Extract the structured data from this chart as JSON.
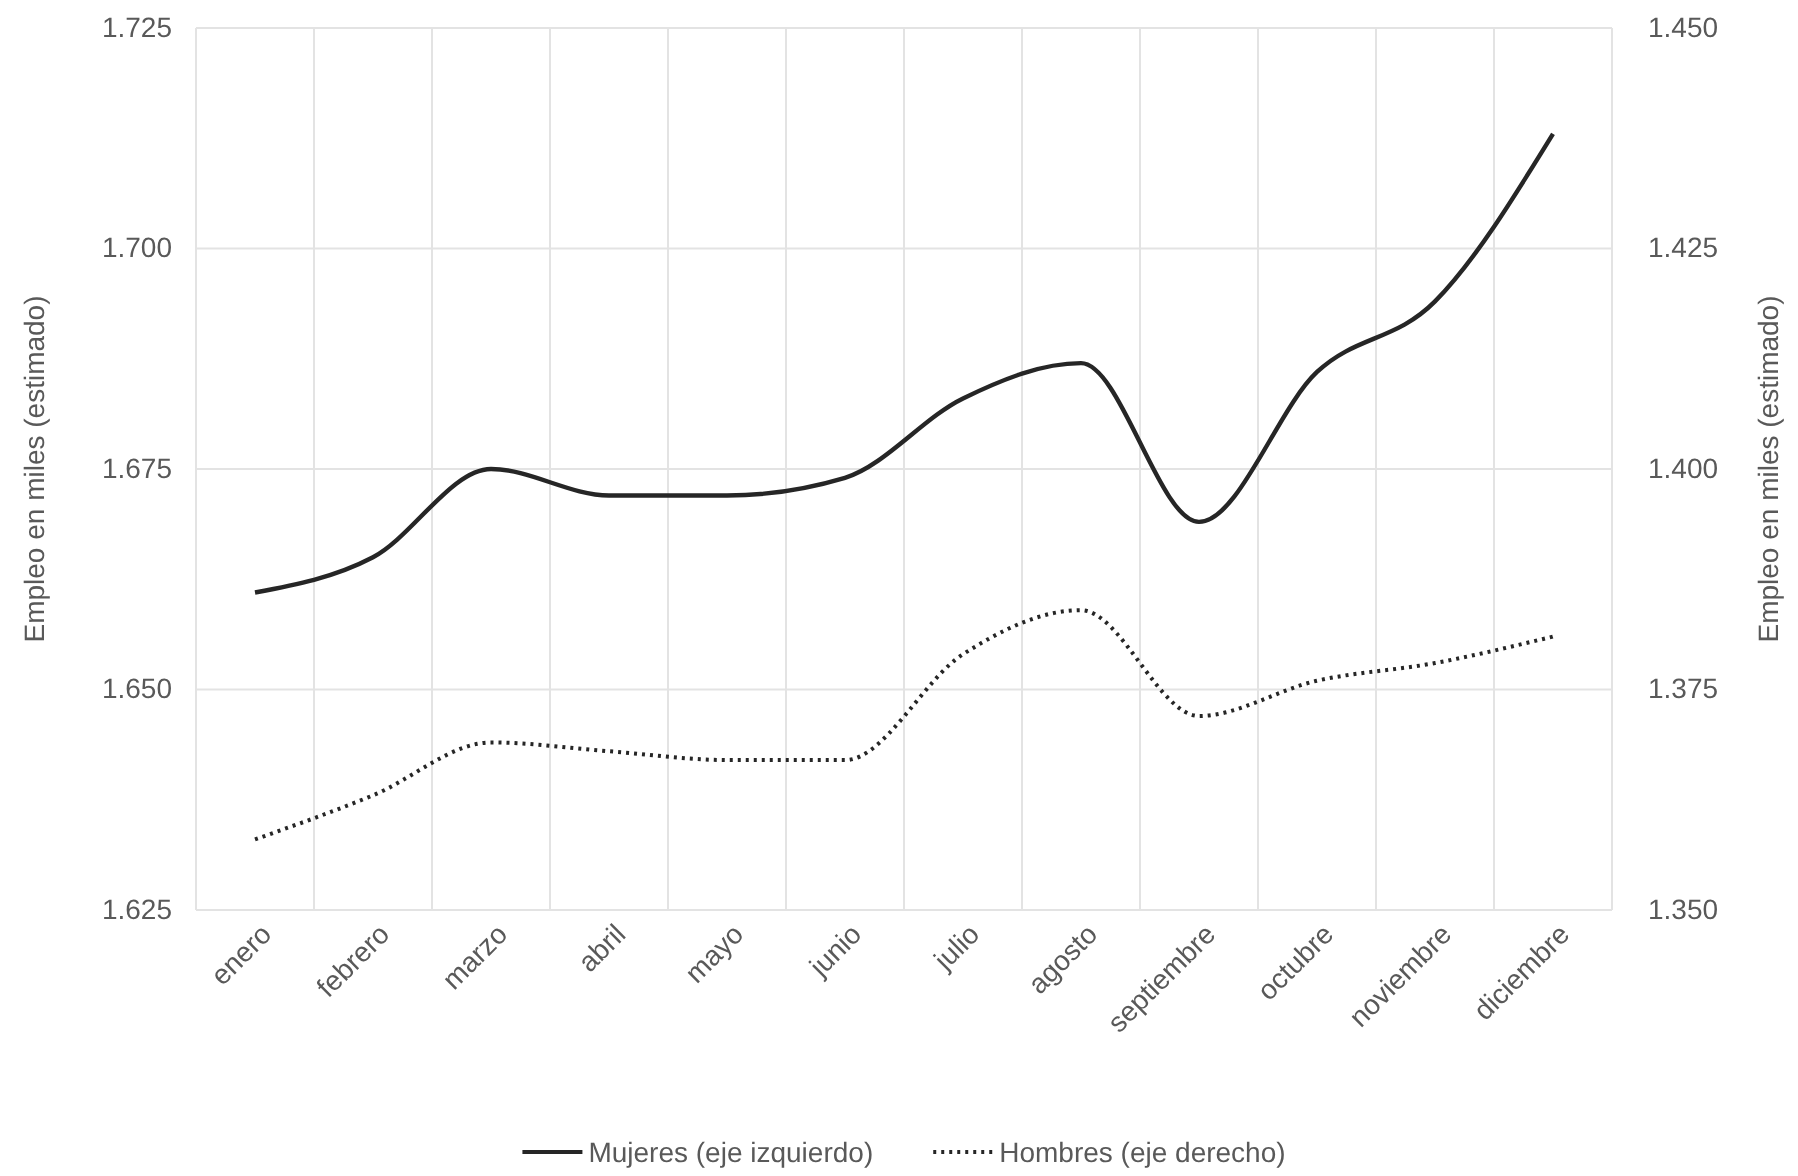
{
  "chart_data": {
    "type": "line",
    "ylabel": "Empleo en miles (estimado)",
    "y2label": "Empleo en miles (estimado)",
    "categories": [
      "enero",
      "febrero",
      "marzo",
      "abril",
      "mayo",
      "junio",
      "julio",
      "agosto",
      "septiembre",
      "octubre",
      "noviembre",
      "diciembre"
    ],
    "series": [
      {
        "name": "Mujeres (eje izquierdo)",
        "color": "#262626",
        "line_style": "solid",
        "values": [
          1.661,
          1.665,
          1.675,
          1.672,
          1.672,
          1.674,
          1.683,
          1.687,
          1.669,
          1.686,
          1.694,
          1.713
        ]
      },
      {
        "name": "Hombres (eje derecho)",
        "color": "#262626",
        "line_style": "dotted",
        "axis": "y2",
        "values": [
          1.358,
          1.363,
          1.369,
          1.368,
          1.367,
          1.367,
          1.379,
          1.384,
          1.372,
          1.376,
          1.378,
          1.381
        ]
      }
    ],
    "ylim": [
      1.625,
      1.725
    ],
    "yticks": [
      {
        "value": 1.625,
        "label": "1.625"
      },
      {
        "value": 1.65,
        "label": "1.650"
      },
      {
        "value": 1.675,
        "label": "1.675"
      },
      {
        "value": 1.7,
        "label": "1.700"
      },
      {
        "value": 1.725,
        "label": "1.725"
      }
    ],
    "y2lim": [
      1.35,
      1.45
    ],
    "y2ticks": [
      {
        "value": 1.35,
        "label": "1.350"
      },
      {
        "value": 1.375,
        "label": "1.375"
      },
      {
        "value": 1.4,
        "label": "1.400"
      },
      {
        "value": 1.425,
        "label": "1.425"
      },
      {
        "value": 1.45,
        "label": "1.450"
      }
    ],
    "grid": true,
    "legend": "bottom",
    "marker": "none"
  }
}
